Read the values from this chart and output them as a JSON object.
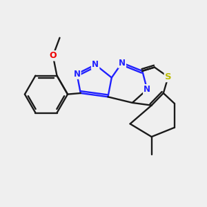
{
  "bg": "#efefef",
  "bc": "#1a1a1a",
  "nc": "#2020ff",
  "oc": "#ee0000",
  "sc": "#bbbb00",
  "lw": 1.7,
  "sep": 0.055,
  "fs": 8.5,
  "figsize": [
    3.0,
    3.0
  ],
  "dpi": 100,
  "xlim": [
    -2.8,
    2.8
  ],
  "ylim": [
    -2.5,
    2.5
  ]
}
